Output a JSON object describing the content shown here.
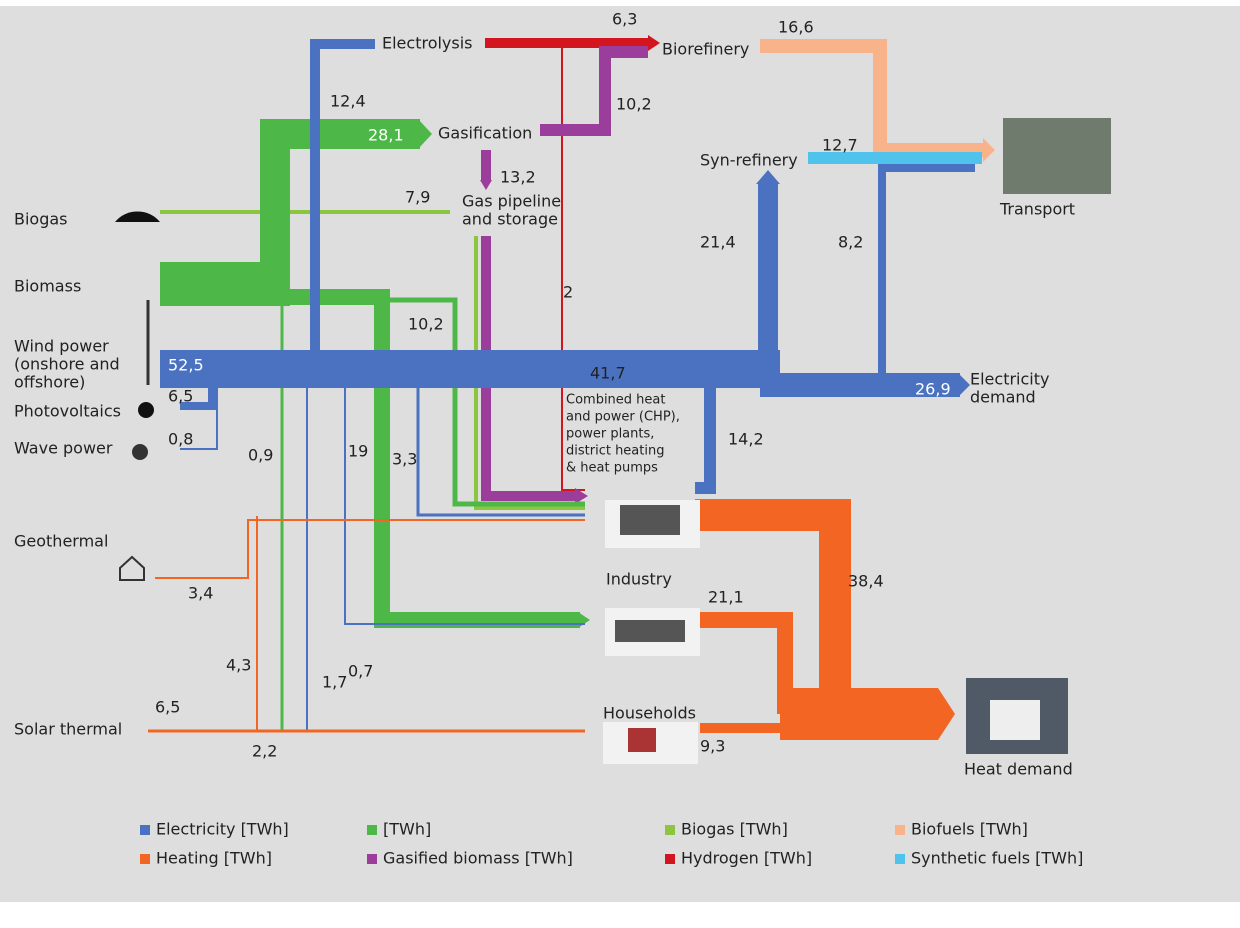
{
  "nodes": {
    "electrolysis": "Electrolysis",
    "biorefinery": "Biorefinery",
    "gasification": "Gasification",
    "gas_storage": [
      "Gas pipeline",
      "and storage"
    ],
    "syn_refinery": "Syn-refinery",
    "transport": "Transport",
    "biogas": "Biogas",
    "biomass": "Biomass",
    "wind": [
      "Wind power",
      "(onshore and",
      "offshore)"
    ],
    "photovoltaics": "Photovoltaics",
    "wave": "Wave power",
    "geothermal": "Geothermal",
    "solar_thermal": "Solar thermal",
    "electricity_demand": [
      "Electricity",
      "demand"
    ],
    "chp": [
      "Combined heat",
      "and power (CHP),",
      "power plants,",
      "district heating",
      "& heat pumps"
    ],
    "industry": "Industry",
    "households": "Households",
    "heat_demand": "Heat demand"
  },
  "flow_labels": [
    "6,3",
    "16,6",
    "12,4",
    "28,1",
    "10,2",
    "13,2",
    "12,7",
    "7,9",
    "21,4",
    "8,2",
    "2",
    "10,2",
    "52,5",
    "41,7",
    "26,9",
    "6,5",
    "0,8",
    "0,9",
    "19",
    "3,3",
    "14,2",
    "38,4",
    "21,1",
    "3,4",
    "0,7",
    "4,3",
    "1,7",
    "6,5",
    "2,2",
    "9,3"
  ],
  "legend": [
    {
      "label": "Electricity [TWh]",
      "color": "#4a72c0"
    },
    {
      "label": "[TWh]",
      "color": "#4db848"
    },
    {
      "label": "Biogas [TWh]",
      "color": "#8cc63f"
    },
    {
      "label": "Biofuels [TWh]",
      "color": "#f9b38a"
    },
    {
      "label": "Heating [TWh]",
      "color": "#f26522"
    },
    {
      "label": "Gasified biomass [TWh]",
      "color": "#9b3d9b"
    },
    {
      "label": "Hydrogen [TWh]",
      "color": "#d2151e"
    },
    {
      "label": "Synthetic fuels [TWh]",
      "color": "#4fc3ec"
    }
  ]
}
